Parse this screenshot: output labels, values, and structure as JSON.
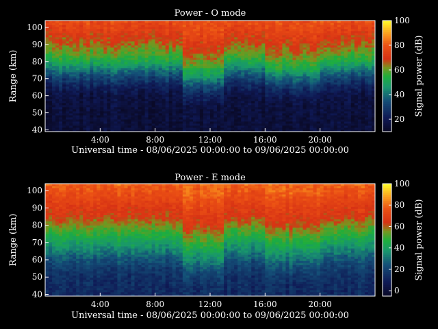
{
  "chart_data": [
    {
      "type": "heatmap",
      "title": "Power - O mode",
      "xlabel": "Universal time - 08/06/2025 00:00:00 to 09/06/2025 00:00:00",
      "ylabel": "Range (km)",
      "colorbar_label": "Signal power (dB)",
      "x_ticks": [
        "4:00",
        "8:00",
        "12:00",
        "16:00",
        "20:00"
      ],
      "x_tick_hours": [
        4,
        8,
        12,
        16,
        20
      ],
      "xlim_hours": [
        0,
        24
      ],
      "y_ticks": [
        40,
        50,
        60,
        70,
        80,
        90,
        100
      ],
      "ylim": [
        39,
        104
      ],
      "colorbar_ticks": [
        20,
        40,
        60,
        80,
        100
      ],
      "colorbar_range": [
        10,
        100
      ],
      "profile": {
        "range_km": [
          40,
          50,
          60,
          65,
          70,
          75,
          80,
          85,
          90,
          95,
          100,
          104
        ],
        "power_db": [
          14,
          14,
          16,
          22,
          30,
          40,
          52,
          60,
          66,
          70,
          75,
          78
        ]
      }
    },
    {
      "type": "heatmap",
      "title": "Power - E mode",
      "xlabel": "Universal time - 08/06/2025 00:00:00 to 09/06/2025 00:00:00",
      "ylabel": "Range (km)",
      "colorbar_label": "Signal power (dB)",
      "x_ticks": [
        "4:00",
        "8:00",
        "12:00",
        "16:00",
        "20:00"
      ],
      "x_tick_hours": [
        4,
        8,
        12,
        16,
        20
      ],
      "xlim_hours": [
        0,
        24
      ],
      "y_ticks": [
        40,
        50,
        60,
        70,
        80,
        90,
        100
      ],
      "ylim": [
        39,
        104
      ],
      "colorbar_ticks": [
        0,
        20,
        40,
        60,
        80,
        100
      ],
      "colorbar_range": [
        -5,
        100
      ],
      "profile": {
        "range_km": [
          40,
          50,
          55,
          60,
          65,
          70,
          75,
          80,
          85,
          90,
          95,
          100,
          104
        ],
        "power_db": [
          12,
          14,
          18,
          24,
          32,
          40,
          48,
          56,
          64,
          68,
          72,
          76,
          80
        ]
      }
    }
  ]
}
